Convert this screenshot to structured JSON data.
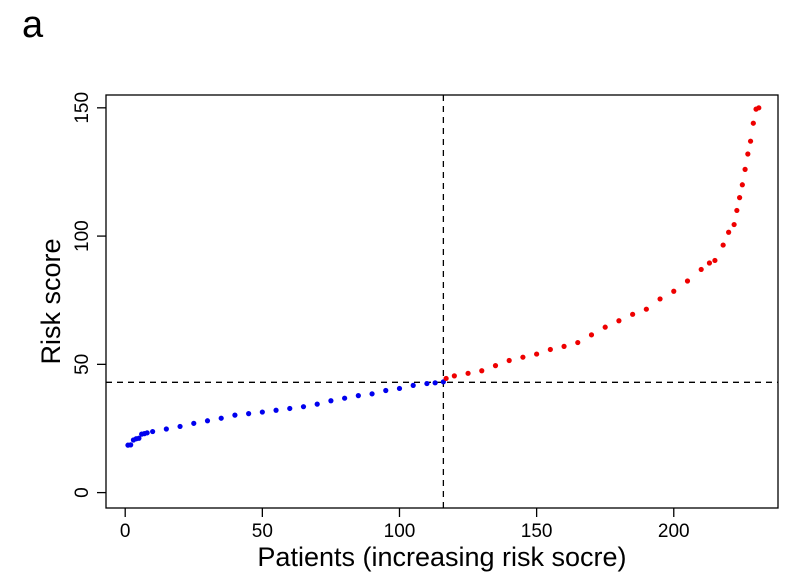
{
  "panel_label": "a",
  "chart_data": {
    "type": "scatter",
    "title": "",
    "xlabel": "Patients (increasing risk socre)",
    "ylabel": "Risk score",
    "xlim": [
      -7,
      238
    ],
    "ylim": [
      -6,
      155
    ],
    "xticks": [
      0,
      50,
      100,
      150,
      200
    ],
    "yticks": [
      0,
      50,
      100,
      150
    ],
    "grid": false,
    "legend": "none",
    "cutoff": {
      "x": 116,
      "y": 43
    },
    "series": [
      {
        "color": "#0000ee",
        "x": [
          1,
          2,
          3,
          4,
          5,
          6,
          7,
          8,
          10,
          15,
          20,
          25,
          30,
          35,
          40,
          45,
          50,
          55,
          60,
          65,
          70,
          75,
          80,
          85,
          90,
          95,
          100,
          105,
          110,
          113,
          116
        ],
        "y": [
          18.5,
          18.6,
          20.5,
          21.0,
          21.2,
          22.8,
          23.0,
          23.3,
          23.8,
          24.8,
          25.8,
          27.0,
          28.0,
          29.0,
          30.2,
          30.8,
          31.4,
          32.1,
          32.8,
          33.5,
          34.5,
          35.8,
          36.8,
          37.8,
          38.5,
          39.8,
          40.6,
          41.8,
          42.5,
          42.8,
          43.2
        ]
      },
      {
        "color": "#ee0000",
        "x": [
          117,
          120,
          125,
          130,
          135,
          140,
          145,
          150,
          155,
          160,
          165,
          170,
          175,
          180,
          185,
          190,
          195,
          200,
          205,
          210,
          213,
          215,
          218,
          220,
          222,
          223,
          224,
          225,
          226,
          227,
          228,
          229,
          230,
          231
        ],
        "y": [
          44.5,
          45.5,
          46.5,
          47.5,
          49.5,
          51.5,
          52.8,
          54.0,
          55.8,
          57.0,
          58.5,
          61.5,
          64.5,
          67.0,
          69.5,
          71.5,
          75.5,
          78.5,
          82.5,
          87.0,
          89.5,
          90.5,
          96.5,
          101.5,
          104.5,
          110.0,
          115.0,
          120.0,
          126.0,
          132.0,
          137.0,
          144.0,
          149.5,
          150.0
        ]
      }
    ]
  }
}
